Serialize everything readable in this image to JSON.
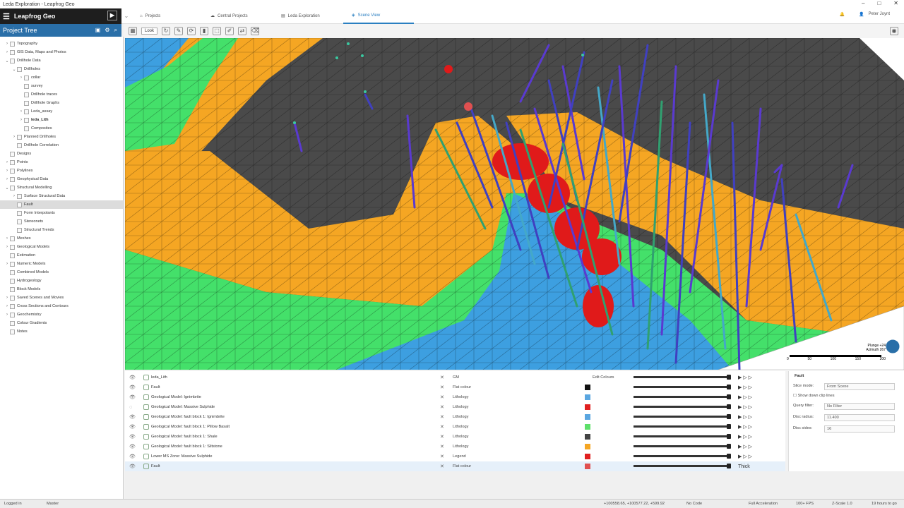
{
  "window": {
    "title": "Leda Exploration - Leapfrog Geo",
    "controls": [
      "–",
      "□",
      "✕"
    ]
  },
  "brand": {
    "name": "Leapfrog Geo"
  },
  "tabs": [
    {
      "label": "Projects"
    },
    {
      "label": "Central Projects"
    },
    {
      "label": "Leda Exploration"
    },
    {
      "label": "Scene View"
    }
  ],
  "user": {
    "name": "Peter Joynt"
  },
  "project_tree": {
    "title": "Project Tree",
    "items": [
      {
        "label": "Topography",
        "depth": 0,
        "arrow": "›"
      },
      {
        "label": "GIS Data, Maps and Photos",
        "depth": 0,
        "arrow": "›"
      },
      {
        "label": "Drillhole Data",
        "depth": 0,
        "arrow": "⌄"
      },
      {
        "label": "Drillholes",
        "depth": 1,
        "arrow": "⌄"
      },
      {
        "label": "collar",
        "depth": 2,
        "arrow": "›"
      },
      {
        "label": "survey",
        "depth": 2,
        "arrow": ""
      },
      {
        "label": "Drillhole traces",
        "depth": 2,
        "arrow": ""
      },
      {
        "label": "Drillhole Graphs",
        "depth": 2,
        "arrow": ""
      },
      {
        "label": "Leda_assay",
        "depth": 2,
        "arrow": "›"
      },
      {
        "label": "leda_Lith",
        "depth": 2,
        "arrow": "›"
      },
      {
        "label": "Composites",
        "depth": 2,
        "arrow": ""
      },
      {
        "label": "Planned Drillholes",
        "depth": 1,
        "arrow": "›"
      },
      {
        "label": "Drillhole Correlation",
        "depth": 1,
        "arrow": ""
      },
      {
        "label": "Designs",
        "depth": 0,
        "arrow": ""
      },
      {
        "label": "Points",
        "depth": 0,
        "arrow": "›"
      },
      {
        "label": "Polylines",
        "depth": 0,
        "arrow": "›"
      },
      {
        "label": "Geophysical Data",
        "depth": 0,
        "arrow": "›"
      },
      {
        "label": "Structural Modelling",
        "depth": 0,
        "arrow": "⌄"
      },
      {
        "label": "Surface Structural Data",
        "depth": 1,
        "arrow": "›"
      },
      {
        "label": "Fault",
        "depth": 1,
        "arrow": "",
        "selected": true
      },
      {
        "label": "Form Interpolants",
        "depth": 1,
        "arrow": ""
      },
      {
        "label": "Stereonets",
        "depth": 1,
        "arrow": ""
      },
      {
        "label": "Structural Trends",
        "depth": 1,
        "arrow": ""
      },
      {
        "label": "Meshes",
        "depth": 0,
        "arrow": "›"
      },
      {
        "label": "Geological Models",
        "depth": 0,
        "arrow": "›"
      },
      {
        "label": "Estimation",
        "depth": 0,
        "arrow": ""
      },
      {
        "label": "Numeric Models",
        "depth": 0,
        "arrow": "›"
      },
      {
        "label": "Combined Models",
        "depth": 0,
        "arrow": ""
      },
      {
        "label": "Hydrogeology",
        "depth": 0,
        "arrow": ""
      },
      {
        "label": "Block Models",
        "depth": 0,
        "arrow": ""
      },
      {
        "label": "Saved Scenes and Movies",
        "depth": 0,
        "arrow": "›"
      },
      {
        "label": "Cross Sections and Contours",
        "depth": 0,
        "arrow": "›"
      },
      {
        "label": "Geochemistry",
        "depth": 0,
        "arrow": "›"
      },
      {
        "label": "Colour Gradients",
        "depth": 0,
        "arrow": ""
      },
      {
        "label": "Notes",
        "depth": 0,
        "arrow": ""
      }
    ]
  },
  "toolbar": {
    "look_label": "Look"
  },
  "scene": {
    "plunge": "Plunge +24",
    "azimuth": "Azimuth 267",
    "scale_ticks": [
      "0",
      "50",
      "100",
      "150",
      "200"
    ]
  },
  "layers": [
    {
      "name": "leda_Lith",
      "property": "GM",
      "colour": "Edit Colours",
      "swatch": "",
      "visible": true
    },
    {
      "name": "Fault",
      "property": "Flat colour",
      "colour": "",
      "swatch": "#111111",
      "visible": true
    },
    {
      "name": "Geological Model: Ignimbrite",
      "property": "Lithology",
      "swatch": "#5aa6e0",
      "visible": true
    },
    {
      "name": "Geological Model: Massive Sulphide",
      "property": "Lithology",
      "swatch": "#e02020",
      "visible": false
    },
    {
      "name": "Geological Model: fault block 1: Ignimbrite",
      "property": "Lithology",
      "swatch": "#5aa6e0",
      "visible": true
    },
    {
      "name": "Geological Model: fault block 1: Pillow Basalt",
      "property": "Lithology",
      "swatch": "#5ee06a",
      "visible": true
    },
    {
      "name": "Geological Model: fault block 1: Shale",
      "property": "Lithology",
      "swatch": "#444444",
      "visible": true
    },
    {
      "name": "Geological Model: fault block 1: Siltstone",
      "property": "Lithology",
      "swatch": "#f5a623",
      "visible": true
    },
    {
      "name": "Lower MS Zone: Massive Sulphide",
      "property": "Legend",
      "swatch": "#e02020",
      "visible": true
    },
    {
      "name": "Fault",
      "property": "Flat colour",
      "swatch": "#e05050",
      "visible": true,
      "selected": true,
      "extra": "Thick"
    }
  ],
  "properties": {
    "title": "Fault",
    "slice_mode_label": "Slice mode:",
    "slice_mode_value": "From Scene",
    "clip_lines_label": "Show down clip lines",
    "query_filter_label": "Query filter:",
    "query_filter_value": "No Filter",
    "disc_radius_label": "Disc radius:",
    "disc_radius_value": "11.400",
    "disc_sides_label": "Disc sides:",
    "disc_sides_value": "16"
  },
  "status": {
    "logged_in": "Logged in",
    "branch": "Master",
    "coords": "+100558.65, +100577.22, +599.92",
    "code": "No Code",
    "accel": "Full Acceleration",
    "fps": "100+ FPS",
    "zscale": "Z-Scale 1.0",
    "hours": "19 hours to go"
  },
  "colors": {
    "accent": "#2a6fa8",
    "orange": "#f5a623",
    "green": "#44e06a",
    "blue": "#3d9fe0",
    "dark": "#4a4a4a",
    "red": "#e01a1a"
  }
}
